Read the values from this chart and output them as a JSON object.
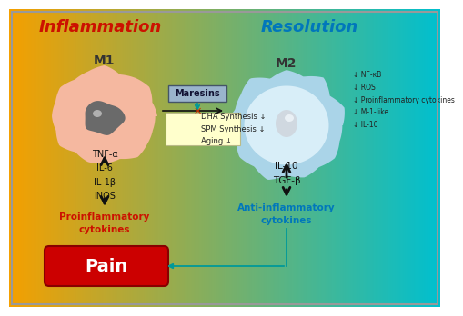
{
  "title_left": "Inflammation",
  "title_right": "Resolution",
  "title_left_color": "#cc1100",
  "title_right_color": "#0077bb",
  "m1_label": "M1",
  "m2_label": "M2",
  "maresins_label": "Maresins",
  "box_label": "DHA Synthesis ↓\nSPM Synthesis ↓\nAging ↓",
  "m1_cytokines": "TNF-α\nIL-6\nIL-1β\niNOS",
  "proinflam_label": "Proinflammatory\ncytokines",
  "pain_label": "Pain",
  "m2_right_text": "↓ NF-κB\n↓ ROS\n↓ Proinflammatory cytokines\n↓ M-1-like\n↓ IL-10",
  "m2_cytokines": "IL-10\nTGF-β",
  "antiinflam_label": "Anti-inflammatory\ncytokines",
  "pain_box_color": "#cc0000",
  "arrow_color": "#111111",
  "teal_arrow_color": "#009999"
}
